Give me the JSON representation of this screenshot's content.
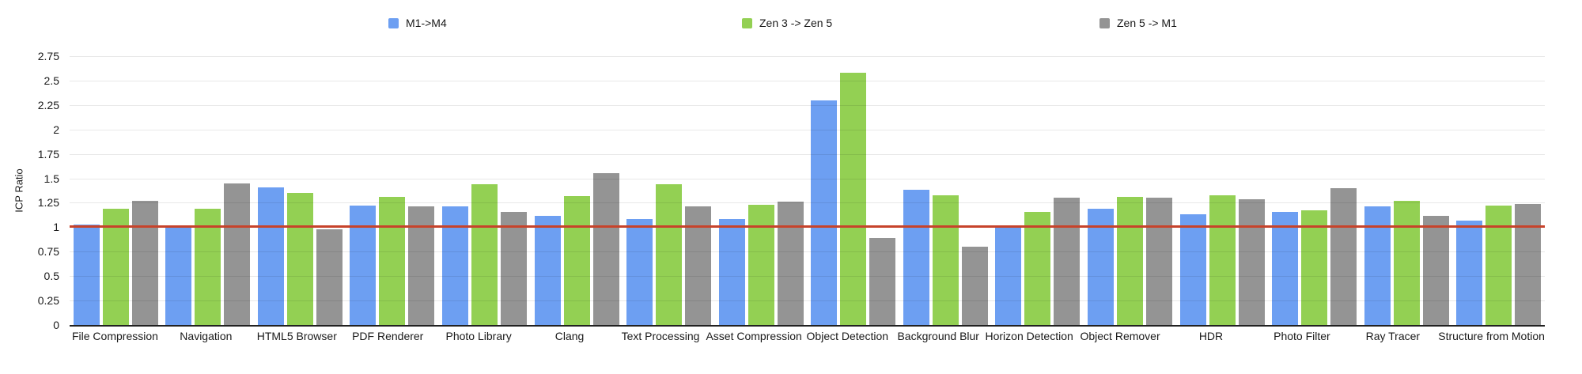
{
  "chart_data": {
    "type": "bar",
    "title": "",
    "xlabel": "",
    "ylabel": "ICP Ratio",
    "ylim": [
      0,
      2.75
    ],
    "ytick_step": 0.25,
    "yticks": [
      "0",
      "0.25",
      "0.5",
      "0.75",
      "1",
      "1.25",
      "1.5",
      "1.75",
      "2",
      "2.25",
      "2.5",
      "2.75"
    ],
    "grid": true,
    "legend_position": "top",
    "reference_line": {
      "value": 1,
      "color": "#c7432b"
    },
    "categories": [
      "File Compression",
      "Navigation",
      "HTML5 Browser",
      "PDF Renderer",
      "Photo Library",
      "Clang",
      "Text Processing",
      "Asset Compression",
      "Object Detection",
      "Background Blur",
      "Horizon Detection",
      "Object Remover",
      "HDR",
      "Photo Filter",
      "Ray Tracer",
      "Structure from Motion"
    ],
    "series": [
      {
        "name": "M1->M4",
        "color": "#6d9ff2",
        "values": [
          1.03,
          1.02,
          1.41,
          1.22,
          1.21,
          1.12,
          1.08,
          1.08,
          2.3,
          1.38,
          1.0,
          1.19,
          1.13,
          1.16,
          1.21,
          1.07
        ]
      },
      {
        "name": "Zen 3 -> Zen 5",
        "color": "#93d053",
        "values": [
          1.19,
          1.19,
          1.35,
          1.31,
          1.44,
          1.32,
          1.44,
          1.23,
          2.58,
          1.33,
          1.16,
          1.31,
          1.33,
          1.17,
          1.27,
          1.22
        ]
      },
      {
        "name": "Zen 5 -> M1",
        "color": "#949494",
        "values": [
          1.27,
          1.45,
          0.98,
          1.21,
          1.16,
          1.55,
          1.21,
          1.26,
          0.89,
          0.8,
          1.3,
          1.3,
          1.29,
          1.4,
          1.12,
          1.24
        ]
      }
    ]
  },
  "colors": {
    "series_blue": "#6d9ff2",
    "series_green": "#93d053",
    "series_gray": "#949494",
    "reference_red": "#c7432b",
    "axis_line": "#212121"
  }
}
